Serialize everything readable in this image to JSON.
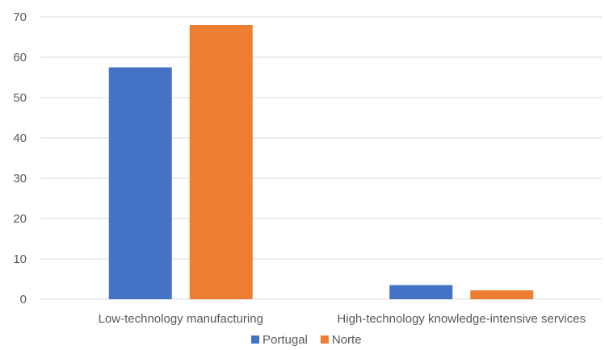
{
  "chart_data": {
    "type": "bar",
    "title": "",
    "xlabel": "",
    "ylabel": "",
    "categories": [
      "Low-technology manufacturing",
      "High-technology knowledge-intensive services"
    ],
    "series": [
      {
        "name": "Portugal",
        "values": [
          57.5,
          3.5
        ],
        "color": "#4472c4"
      },
      {
        "name": "Norte",
        "values": [
          68,
          2.2
        ],
        "color": "#ed7d31"
      }
    ],
    "ylim": [
      0,
      70
    ],
    "yticks": [
      "0",
      "10",
      "20",
      "30",
      "40",
      "50",
      "60",
      "70"
    ],
    "grid": true,
    "legend_position": "bottom"
  }
}
